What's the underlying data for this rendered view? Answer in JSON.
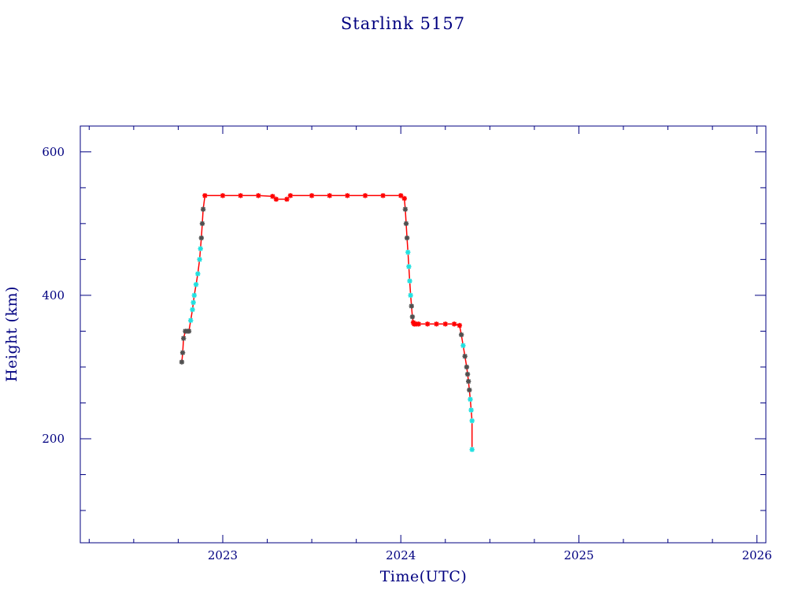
{
  "chart_data": {
    "type": "scatter",
    "title": "Starlink 5157",
    "xlabel": "Time(UTC)",
    "ylabel": "Height (km)",
    "xlim": [
      2022.2,
      2026.05
    ],
    "ylim": [
      55,
      636
    ],
    "x_ticks": [
      2023,
      2024,
      2025,
      2026
    ],
    "x_tick_labels": [
      "2023",
      "2024",
      "2025",
      "2026"
    ],
    "y_ticks": [
      200,
      400,
      600
    ],
    "y_tick_labels": [
      "200",
      "400",
      "600"
    ],
    "grid": false,
    "colors": {
      "axes": "#000080",
      "line": "#ff0000",
      "marker_primary": "#ff0000",
      "marker_secondary": "#20e0e0",
      "marker_dark": "#505050"
    },
    "series": [
      {
        "marker": "star",
        "x": [
          2022.77,
          2022.775,
          2022.78,
          2022.79,
          2022.8,
          2022.81,
          2022.82,
          2022.83,
          2022.835,
          2022.84,
          2022.85,
          2022.86,
          2022.87,
          2022.875,
          2022.88,
          2022.885,
          2022.89,
          2022.9,
          2023.0,
          2023.1,
          2023.2,
          2023.28,
          2023.3,
          2023.36,
          2023.38,
          2023.5,
          2023.6,
          2023.7,
          2023.8,
          2023.9,
          2024.0,
          2024.02,
          2024.025,
          2024.03,
          2024.035,
          2024.04,
          2024.045,
          2024.05,
          2024.055,
          2024.06,
          2024.065,
          2024.07,
          2024.075,
          2024.08,
          2024.09,
          2024.1,
          2024.15,
          2024.2,
          2024.25,
          2024.3,
          2024.33,
          2024.34,
          2024.35,
          2024.36,
          2024.37,
          2024.375,
          2024.38,
          2024.385,
          2024.39,
          2024.395,
          2024.4,
          2024.4
        ],
        "y": [
          307,
          320,
          340,
          350,
          350,
          350,
          365,
          380,
          390,
          400,
          415,
          430,
          450,
          465,
          480,
          500,
          520,
          539,
          539,
          539,
          539,
          538,
          534,
          534,
          539,
          539,
          539,
          539,
          539,
          539,
          539,
          535,
          520,
          500,
          480,
          460,
          440,
          420,
          400,
          385,
          370,
          362,
          360,
          360,
          360,
          360,
          360,
          360,
          360,
          360,
          358,
          345,
          330,
          315,
          300,
          290,
          280,
          268,
          255,
          240,
          225,
          185
        ]
      }
    ]
  }
}
